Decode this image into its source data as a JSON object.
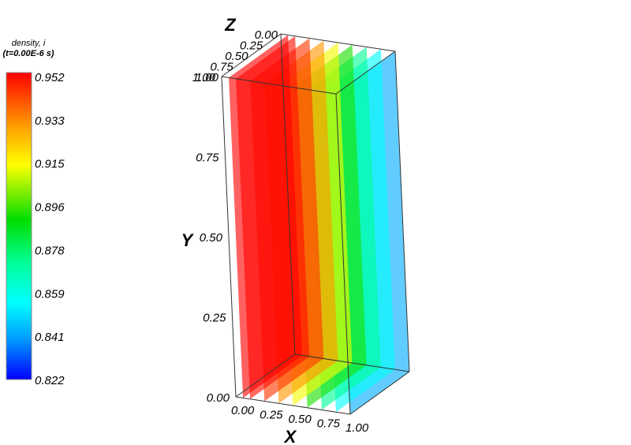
{
  "legend": {
    "title_line1": "density, i",
    "title_line2": "(t=0.00E-6 s)",
    "ticks": [
      "0.952",
      "0.933",
      "0.915",
      "0.896",
      "0.878",
      "0.859",
      "0.841",
      "0.822"
    ]
  },
  "axes": {
    "x": {
      "name": "X",
      "ticks": [
        "0.00",
        "0.25",
        "0.50",
        "0.75",
        "1.00"
      ]
    },
    "y": {
      "name": "Y",
      "ticks": [
        "0.00",
        "0.25",
        "0.50",
        "0.75",
        "1.00"
      ]
    },
    "z": {
      "name": "Z",
      "ticks": [
        "0.00",
        "0.25",
        "0.50",
        "0.75",
        "1.00"
      ]
    }
  },
  "chart_data": {
    "type": "3d-pseudocolor-slices",
    "variable": "density, i",
    "time": "t=0.00E-6 s",
    "colormap": "rainbow",
    "color_range": [
      0.822,
      0.952
    ],
    "slice_axis": "x",
    "slices": [
      {
        "x": 0.0625,
        "value": 0.952
      },
      {
        "x": 0.125,
        "value": 0.95
      },
      {
        "x": 0.25,
        "value": 0.944
      },
      {
        "x": 0.375,
        "value": 0.93
      },
      {
        "x": 0.5,
        "value": 0.912
      },
      {
        "x": 0.625,
        "value": 0.892
      },
      {
        "x": 0.75,
        "value": 0.872
      },
      {
        "x": 0.875,
        "value": 0.855
      },
      {
        "x": 1.0,
        "value": 0.842
      }
    ],
    "ranges": {
      "x": [
        0,
        1
      ],
      "y": [
        0,
        1
      ],
      "z": [
        0,
        1
      ]
    }
  }
}
